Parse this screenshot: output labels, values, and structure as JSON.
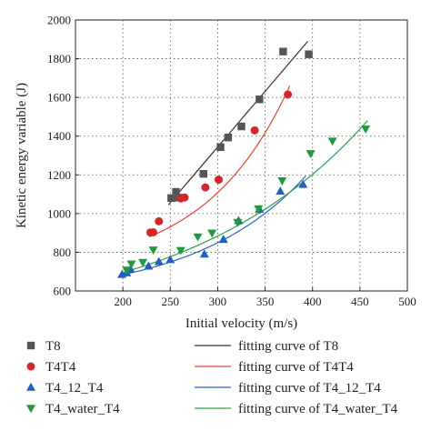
{
  "chart_data": {
    "type": "scatter",
    "xlabel": "Initial velocity (m/s)",
    "ylabel": "Kinetic energy variable (J)",
    "xlim": [
      150,
      500
    ],
    "ylim": [
      600,
      2000
    ],
    "xticks": [
      200,
      250,
      300,
      350,
      400,
      450,
      500
    ],
    "yticks": [
      600,
      800,
      1000,
      1200,
      1400,
      1600,
      1800,
      2000
    ],
    "grid": true,
    "legend_position": "bottom",
    "series": [
      {
        "name": "T8",
        "marker": "square",
        "color": "#555555",
        "points": [
          [
            251,
            1080
          ],
          [
            256,
            1112
          ],
          [
            259,
            1082
          ],
          [
            285,
            1205
          ],
          [
            303,
            1343
          ],
          [
            311,
            1393
          ],
          [
            325,
            1450
          ],
          [
            344,
            1590
          ],
          [
            369,
            1837
          ],
          [
            396,
            1823
          ]
        ]
      },
      {
        "name": "T4T4",
        "marker": "circle",
        "color": "#d62728",
        "points": [
          [
            229,
            902
          ],
          [
            232,
            903
          ],
          [
            238,
            960
          ],
          [
            261,
            1078
          ],
          [
            265,
            1083
          ],
          [
            287,
            1135
          ],
          [
            301,
            1175
          ],
          [
            339,
            1430
          ],
          [
            374,
            1615
          ]
        ]
      },
      {
        "name": "T4_12_T4",
        "marker": "triangle-up",
        "color": "#1f5fbf",
        "points": [
          [
            199,
            685
          ],
          [
            204,
            693
          ],
          [
            208,
            712
          ],
          [
            227,
            728
          ],
          [
            238,
            751
          ],
          [
            250,
            761
          ],
          [
            286,
            790
          ],
          [
            306,
            866
          ],
          [
            322,
            963
          ],
          [
            344,
            1022
          ],
          [
            366,
            1115
          ],
          [
            390,
            1150
          ]
        ]
      },
      {
        "name": "T4_water_T4",
        "marker": "triangle-down",
        "color": "#1e9b3c",
        "points": [
          [
            204,
            708
          ],
          [
            209,
            740
          ],
          [
            221,
            748
          ],
          [
            232,
            812
          ],
          [
            261,
            810
          ],
          [
            279,
            880
          ],
          [
            294,
            900
          ],
          [
            321,
            955
          ],
          [
            343,
            1025
          ],
          [
            368,
            1170
          ],
          [
            398,
            1310
          ],
          [
            421,
            1375
          ],
          [
            456,
            1437
          ]
        ]
      }
    ],
    "fits": [
      {
        "name": "fitting curve of T8",
        "color": "#333333",
        "x": [
          248,
          395
        ],
        "y": [
          1045,
          1890
        ],
        "curvature": 0.0
      },
      {
        "name": "fitting curve of T4T4",
        "color": "#e0462c",
        "x": [
          228,
          376
        ],
        "y": [
          880,
          1660
        ],
        "curvature": 0.55
      },
      {
        "name": "fitting curve of T4_12_T4",
        "color": "#2a63c8",
        "x": [
          198,
          393
        ],
        "y": [
          682,
          1195
        ],
        "curvature": 0.55
      },
      {
        "name": "fitting curve of T4_water_T4",
        "color": "#2aa24a",
        "x": [
          200,
          458
        ],
        "y": [
          695,
          1480
        ],
        "curvature": 0.45
      }
    ]
  }
}
